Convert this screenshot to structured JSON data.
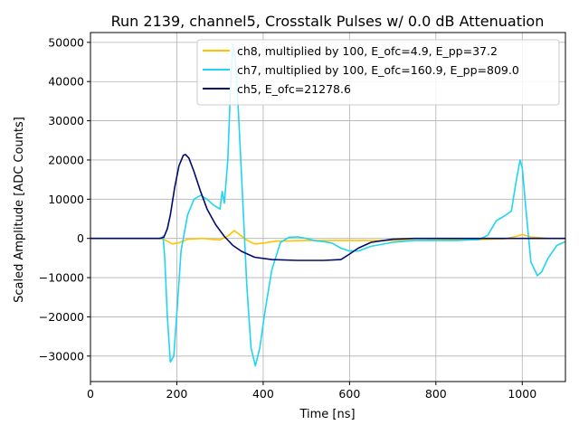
{
  "chart_data": {
    "type": "line",
    "title": "Run 2139, channel5, Crosstalk Pulses w/ 0.0 dB Attenuation",
    "xlabel": "Time [ns]",
    "ylabel": "Scaled Amplitude [ADC Counts]",
    "xlim": [
      0,
      1100
    ],
    "ylim": [
      -36500,
      52500
    ],
    "xticks": [
      0,
      200,
      400,
      600,
      800,
      1000
    ],
    "yticks": [
      -30000,
      -20000,
      -10000,
      0,
      10000,
      20000,
      30000,
      40000,
      50000
    ],
    "grid": true,
    "legend_position": "upper-right",
    "series": [
      {
        "name": "ch8, multiplied by 100,  E_ofc=4.9, E_pp=37.2",
        "color": "#ffc400",
        "x": [
          0,
          160,
          175,
          190,
          205,
          225,
          260,
          300,
          318,
          333,
          345,
          360,
          380,
          400,
          430,
          470,
          500,
          600,
          700,
          800,
          900,
          960,
          985,
          1000,
          1020,
          1060,
          1100
        ],
        "y": [
          0,
          0,
          -500,
          -1400,
          -1100,
          -200,
          0,
          -400,
          600,
          2000,
          1000,
          -300,
          -1400,
          -1200,
          -700,
          -600,
          -500,
          -500,
          -500,
          -400,
          -300,
          -100,
          500,
          1000,
          400,
          0,
          0
        ]
      },
      {
        "name": "ch7, multiplied by 100,  E_ofc=160.9, E_pp=809.0",
        "color": "#1fd5f0",
        "x": [
          0,
          160,
          165,
          168,
          172,
          178,
          185,
          193,
          200,
          210,
          225,
          240,
          255,
          270,
          285,
          300,
          305,
          310,
          318,
          325,
          330,
          335,
          340,
          350,
          362,
          372,
          382,
          392,
          405,
          420,
          440,
          460,
          480,
          500,
          520,
          540,
          560,
          580,
          600,
          620,
          650,
          700,
          750,
          800,
          850,
          900,
          920,
          940,
          960,
          975,
          985,
          995,
          1000,
          1008,
          1020,
          1035,
          1045,
          1060,
          1080,
          1100
        ],
        "y": [
          0,
          0,
          100,
          600,
          -5000,
          -20000,
          -31500,
          -30000,
          -19000,
          -3000,
          6000,
          10000,
          11000,
          10000,
          8500,
          7500,
          12000,
          9000,
          20000,
          40000,
          49500,
          46000,
          38000,
          16000,
          -12000,
          -28000,
          -32500,
          -28000,
          -18000,
          -8000,
          -1000,
          300,
          400,
          0,
          -600,
          -800,
          -1200,
          -2500,
          -3200,
          -3200,
          -2000,
          -1000,
          -500,
          -500,
          -500,
          -300,
          800,
          4500,
          5800,
          7000,
          14000,
          20000,
          18000,
          8000,
          -6000,
          -9500,
          -8500,
          -5000,
          -1800,
          -800
        ]
      },
      {
        "name": "ch5,  E_ofc=21278.6",
        "color": "#000b6b",
        "x": [
          0,
          160,
          170,
          178,
          185,
          195,
          205,
          215,
          220,
          228,
          240,
          255,
          270,
          290,
          310,
          330,
          350,
          380,
          420,
          480,
          540,
          580,
          600,
          620,
          650,
          700,
          750,
          800,
          1000,
          1100
        ],
        "y": [
          0,
          0,
          300,
          2500,
          6000,
          13000,
          18500,
          21200,
          21400,
          20500,
          17000,
          12000,
          7500,
          3500,
          500,
          -1800,
          -3300,
          -4800,
          -5400,
          -5600,
          -5600,
          -5400,
          -4000,
          -2500,
          -1000,
          -200,
          0,
          0,
          0,
          0
        ]
      }
    ]
  }
}
